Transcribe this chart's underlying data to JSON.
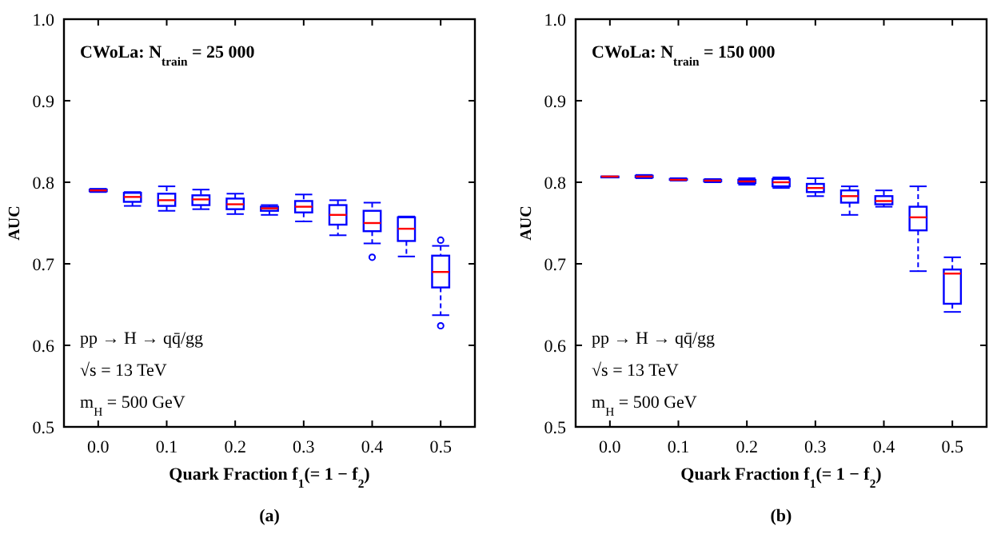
{
  "chart_data": [
    {
      "type": "box",
      "xlabel": "Quark Fraction f$_{1}$(= 1 − f$_{2}$)",
      "ylabel": "AUC",
      "ylim": [
        0.5,
        1.0
      ],
      "yticks": [
        0.5,
        0.6,
        0.7,
        0.8,
        0.9,
        {
          "value": 1,
          "label": "1.0"
        }
      ],
      "grid": false,
      "annotations": [
        "CWoLa: N$_{train}$ = 25 000",
        "pp → H → qq̄/gg",
        "√s = 13 TeV",
        "m$_{H}$ = 500 GeV",
        "(a)"
      ],
      "categories": [
        "0.0",
        null,
        "0.1",
        null,
        "0.2",
        null,
        "0.3",
        null,
        "0.4",
        null,
        "0.5"
      ],
      "series": [
        {
          "color": "#0000ff",
          "boxes": [
            {
              "low": 0.788,
              "q1": 0.789,
              "median": 0.79,
              "q3": 0.791,
              "high": 0.792
            },
            {
              "low": 0.771,
              "q1": 0.776,
              "median": 0.782,
              "q3": 0.787,
              "high": 0.788
            },
            {
              "low": 0.765,
              "q1": 0.771,
              "median": 0.778,
              "q3": 0.786,
              "high": 0.795
            },
            {
              "low": 0.767,
              "q1": 0.772,
              "median": 0.779,
              "q3": 0.784,
              "high": 0.791
            },
            {
              "low": 0.761,
              "q1": 0.767,
              "median": 0.773,
              "q3": 0.78,
              "high": 0.786
            },
            {
              "low": 0.76,
              "q1": 0.765,
              "median": 0.768,
              "q3": 0.77,
              "high": 0.772
            },
            {
              "low": 0.752,
              "q1": 0.763,
              "median": 0.77,
              "q3": 0.777,
              "high": 0.785
            },
            {
              "low": 0.735,
              "q1": 0.748,
              "median": 0.76,
              "q3": 0.772,
              "high": 0.778
            },
            {
              "low": 0.725,
              "q1": 0.74,
              "median": 0.75,
              "q3": 0.765,
              "high": 0.775,
              "outliers": [
                0.708
              ]
            },
            {
              "low": 0.709,
              "q1": 0.728,
              "median": 0.743,
              "q3": 0.757,
              "high": 0.758
            },
            {
              "low": 0.637,
              "q1": 0.671,
              "median": 0.69,
              "q3": 0.71,
              "high": 0.722,
              "outliers": [
                0.729,
                0.624
              ]
            }
          ]
        }
      ]
    },
    {
      "type": "box",
      "xlabel": "Quark Fraction f$_{1}$(= 1 − f$_{2}$)",
      "ylabel": "AUC",
      "ylim": [
        0.5,
        1.0
      ],
      "yticks": [
        0.5,
        0.6,
        0.7,
        0.8,
        0.9,
        {
          "value": 1,
          "label": "1.0"
        }
      ],
      "grid": false,
      "annotations": [
        "CWoLa: N$_{train}$ = 150 000",
        "pp → H → qq̄/gg",
        "√s = 13 TeV",
        "m$_{H}$ = 500 GeV",
        "(b)"
      ],
      "categories": [
        "0.0",
        null,
        "0.1",
        null,
        "0.2",
        null,
        "0.3",
        null,
        "0.4",
        null,
        "0.5"
      ],
      "series": [
        {
          "color": "#0000ff",
          "boxes": [
            {
              "low": 0.806,
              "q1": 0.806,
              "median": 0.807,
              "q3": 0.807,
              "high": 0.807
            },
            {
              "low": 0.805,
              "q1": 0.806,
              "median": 0.807,
              "q3": 0.808,
              "high": 0.809
            },
            {
              "low": 0.802,
              "q1": 0.803,
              "median": 0.803,
              "q3": 0.804,
              "high": 0.805
            },
            {
              "low": 0.8,
              "q1": 0.801,
              "median": 0.802,
              "q3": 0.803,
              "high": 0.804
            },
            {
              "low": 0.797,
              "q1": 0.799,
              "median": 0.801,
              "q3": 0.803,
              "high": 0.805
            },
            {
              "low": 0.793,
              "q1": 0.795,
              "median": 0.8,
              "q3": 0.804,
              "high": 0.806
            },
            {
              "low": 0.783,
              "q1": 0.788,
              "median": 0.793,
              "q3": 0.798,
              "high": 0.805
            },
            {
              "low": 0.76,
              "q1": 0.775,
              "median": 0.783,
              "q3": 0.79,
              "high": 0.795
            },
            {
              "low": 0.77,
              "q1": 0.773,
              "median": 0.777,
              "q3": 0.783,
              "high": 0.79
            },
            {
              "low": 0.691,
              "q1": 0.741,
              "median": 0.757,
              "q3": 0.77,
              "high": 0.795
            },
            {
              "low": 0.641,
              "q1": 0.651,
              "median": 0.688,
              "q3": 0.693,
              "high": 0.708
            }
          ]
        }
      ]
    }
  ]
}
